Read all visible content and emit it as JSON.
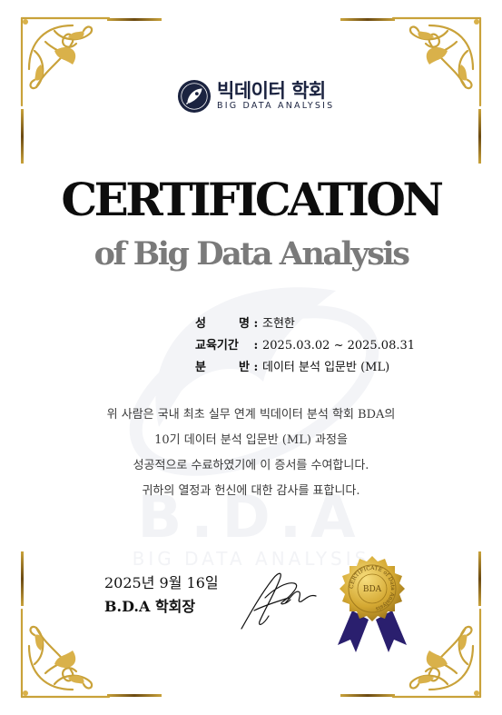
{
  "org": {
    "name_ko": "빅데이터 학회",
    "name_en": "BIG DATA ANALYSIS"
  },
  "title": "CERTIFICATION",
  "subtitle": "of Big Data Analysis",
  "watermark": {
    "letters": "B.D.A",
    "text": "BIG DATA ANALYSIS"
  },
  "info": [
    {
      "label": [
        "성",
        "명"
      ],
      "value": "조현한"
    },
    {
      "label": [
        "교육기간"
      ],
      "value": "2025.03.02 ~ 2025.08.31"
    },
    {
      "label": [
        "분",
        "반"
      ],
      "value": "데이터 분석 입문반 (ML)"
    }
  ],
  "body_lines": [
    "위 사람은 국내 최초 실무 연계 빅데이터 분석 학회 BDA의",
    "10기 데이터 분석 입문반 (ML) 과정을",
    "성공적으로 수료하였기에 이 증서를 수여합니다.",
    "귀하의 열정과 헌신에 대한 감사를 표합니다."
  ],
  "date": "2025년 9월 16일",
  "signer": "B.D.A 학회장",
  "seal": {
    "center": "BDA",
    "ring": "CERTIFICATE of Data Analysis"
  },
  "colors": {
    "gold": "#c9a23a",
    "navy": "#1b2340",
    "ribbon": "#2a1f6e"
  }
}
